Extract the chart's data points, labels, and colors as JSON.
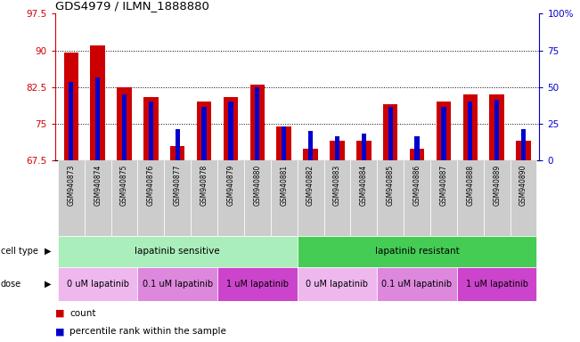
{
  "title": "GDS4979 / ILMN_1888880",
  "samples": [
    "GSM940873",
    "GSM940874",
    "GSM940875",
    "GSM940876",
    "GSM940877",
    "GSM940878",
    "GSM940879",
    "GSM940880",
    "GSM940881",
    "GSM940882",
    "GSM940883",
    "GSM940884",
    "GSM940885",
    "GSM940886",
    "GSM940887",
    "GSM940888",
    "GSM940889",
    "GSM940890"
  ],
  "red_values": [
    89.5,
    91.0,
    82.5,
    80.5,
    70.5,
    79.5,
    80.5,
    83.0,
    74.5,
    70.0,
    71.5,
    71.5,
    79.0,
    70.0,
    79.5,
    81.0,
    81.0,
    71.5
  ],
  "blue_values": [
    83.5,
    84.5,
    81.0,
    79.5,
    74.0,
    78.5,
    79.5,
    82.5,
    74.5,
    73.5,
    72.5,
    73.0,
    78.5,
    72.5,
    78.5,
    79.5,
    80.0,
    74.0
  ],
  "ylim_left": [
    67.5,
    97.5
  ],
  "ylim_right": [
    0,
    100
  ],
  "yticks_left": [
    67.5,
    75.0,
    82.5,
    90.0,
    97.5
  ],
  "ytick_labels_left": [
    "67.5",
    "75",
    "82.5",
    "90",
    "97.5"
  ],
  "yticks_right": [
    0,
    25,
    50,
    75,
    100
  ],
  "ytick_labels_right": [
    "0",
    "25",
    "50",
    "75",
    "100%"
  ],
  "cell_type_groups": [
    {
      "label": "lapatinib sensitive",
      "start": 0,
      "end": 9,
      "color": "#AAEEBB"
    },
    {
      "label": "lapatinib resistant",
      "start": 9,
      "end": 18,
      "color": "#44CC55"
    }
  ],
  "dose_groups": [
    {
      "label": "0 uM lapatinib",
      "start": 0,
      "end": 3,
      "color": "#EEB8EE"
    },
    {
      "label": "0.1 uM lapatinib",
      "start": 3,
      "end": 6,
      "color": "#DD88DD"
    },
    {
      "label": "1 uM lapatinib",
      "start": 6,
      "end": 9,
      "color": "#CC44CC"
    },
    {
      "label": "0 uM lapatinib",
      "start": 9,
      "end": 12,
      "color": "#EEB8EE"
    },
    {
      "label": "0.1 uM lapatinib",
      "start": 12,
      "end": 15,
      "color": "#DD88DD"
    },
    {
      "label": "1 uM lapatinib",
      "start": 15,
      "end": 18,
      "color": "#CC44CC"
    }
  ],
  "red_color": "#CC0000",
  "blue_color": "#0000CC",
  "grid_color": "black",
  "bg_color": "white",
  "left_axis_color": "#CC0000",
  "right_axis_color": "#0000CC",
  "xticklabel_bg": "#CCCCCC"
}
